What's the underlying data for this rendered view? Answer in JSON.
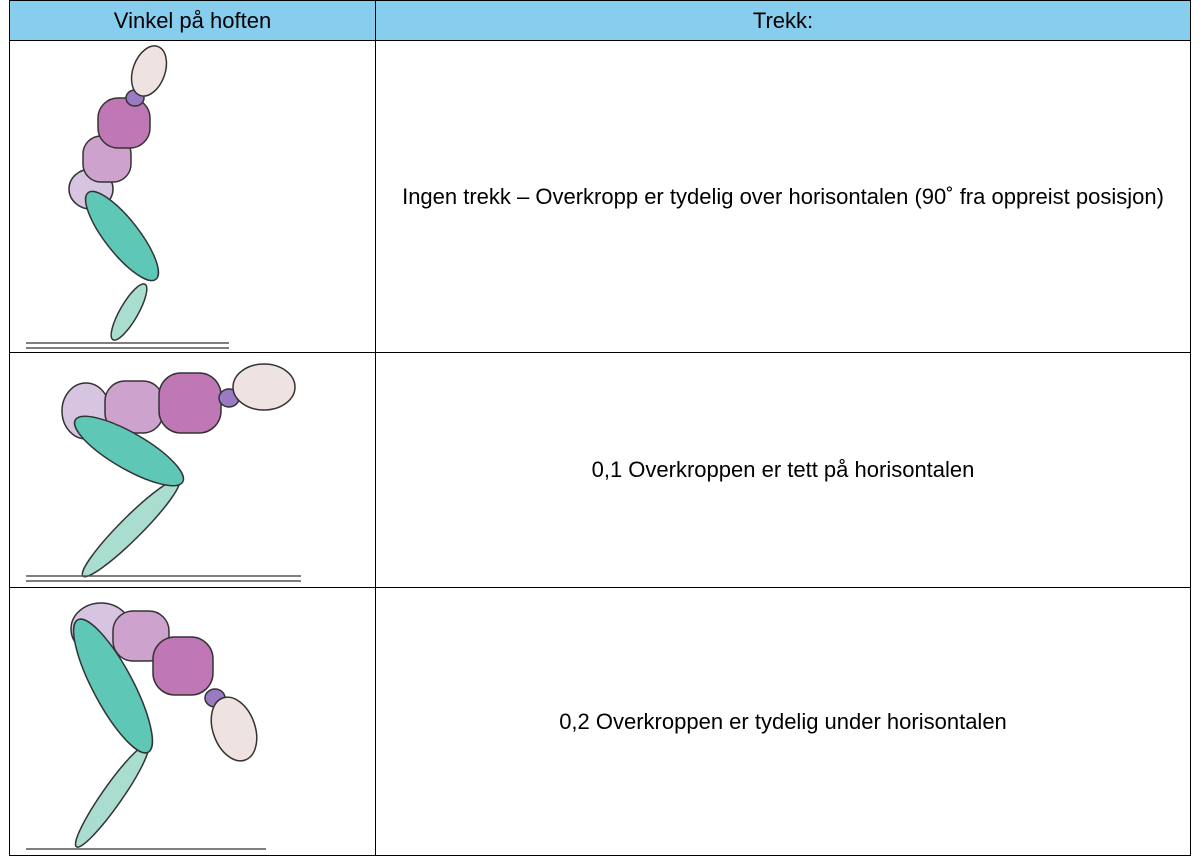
{
  "table": {
    "header": [
      "Vinkel på hoften",
      "Trekk:"
    ],
    "rows": [
      "Ingen trekk – Overkropp er tydelig over horisontalen (90˚ fra oppreist posisjon)",
      "0,1 Overkroppen er tett på horisontalen",
      "0,2 Overkroppen er tydelig under horisontalen"
    ]
  }
}
